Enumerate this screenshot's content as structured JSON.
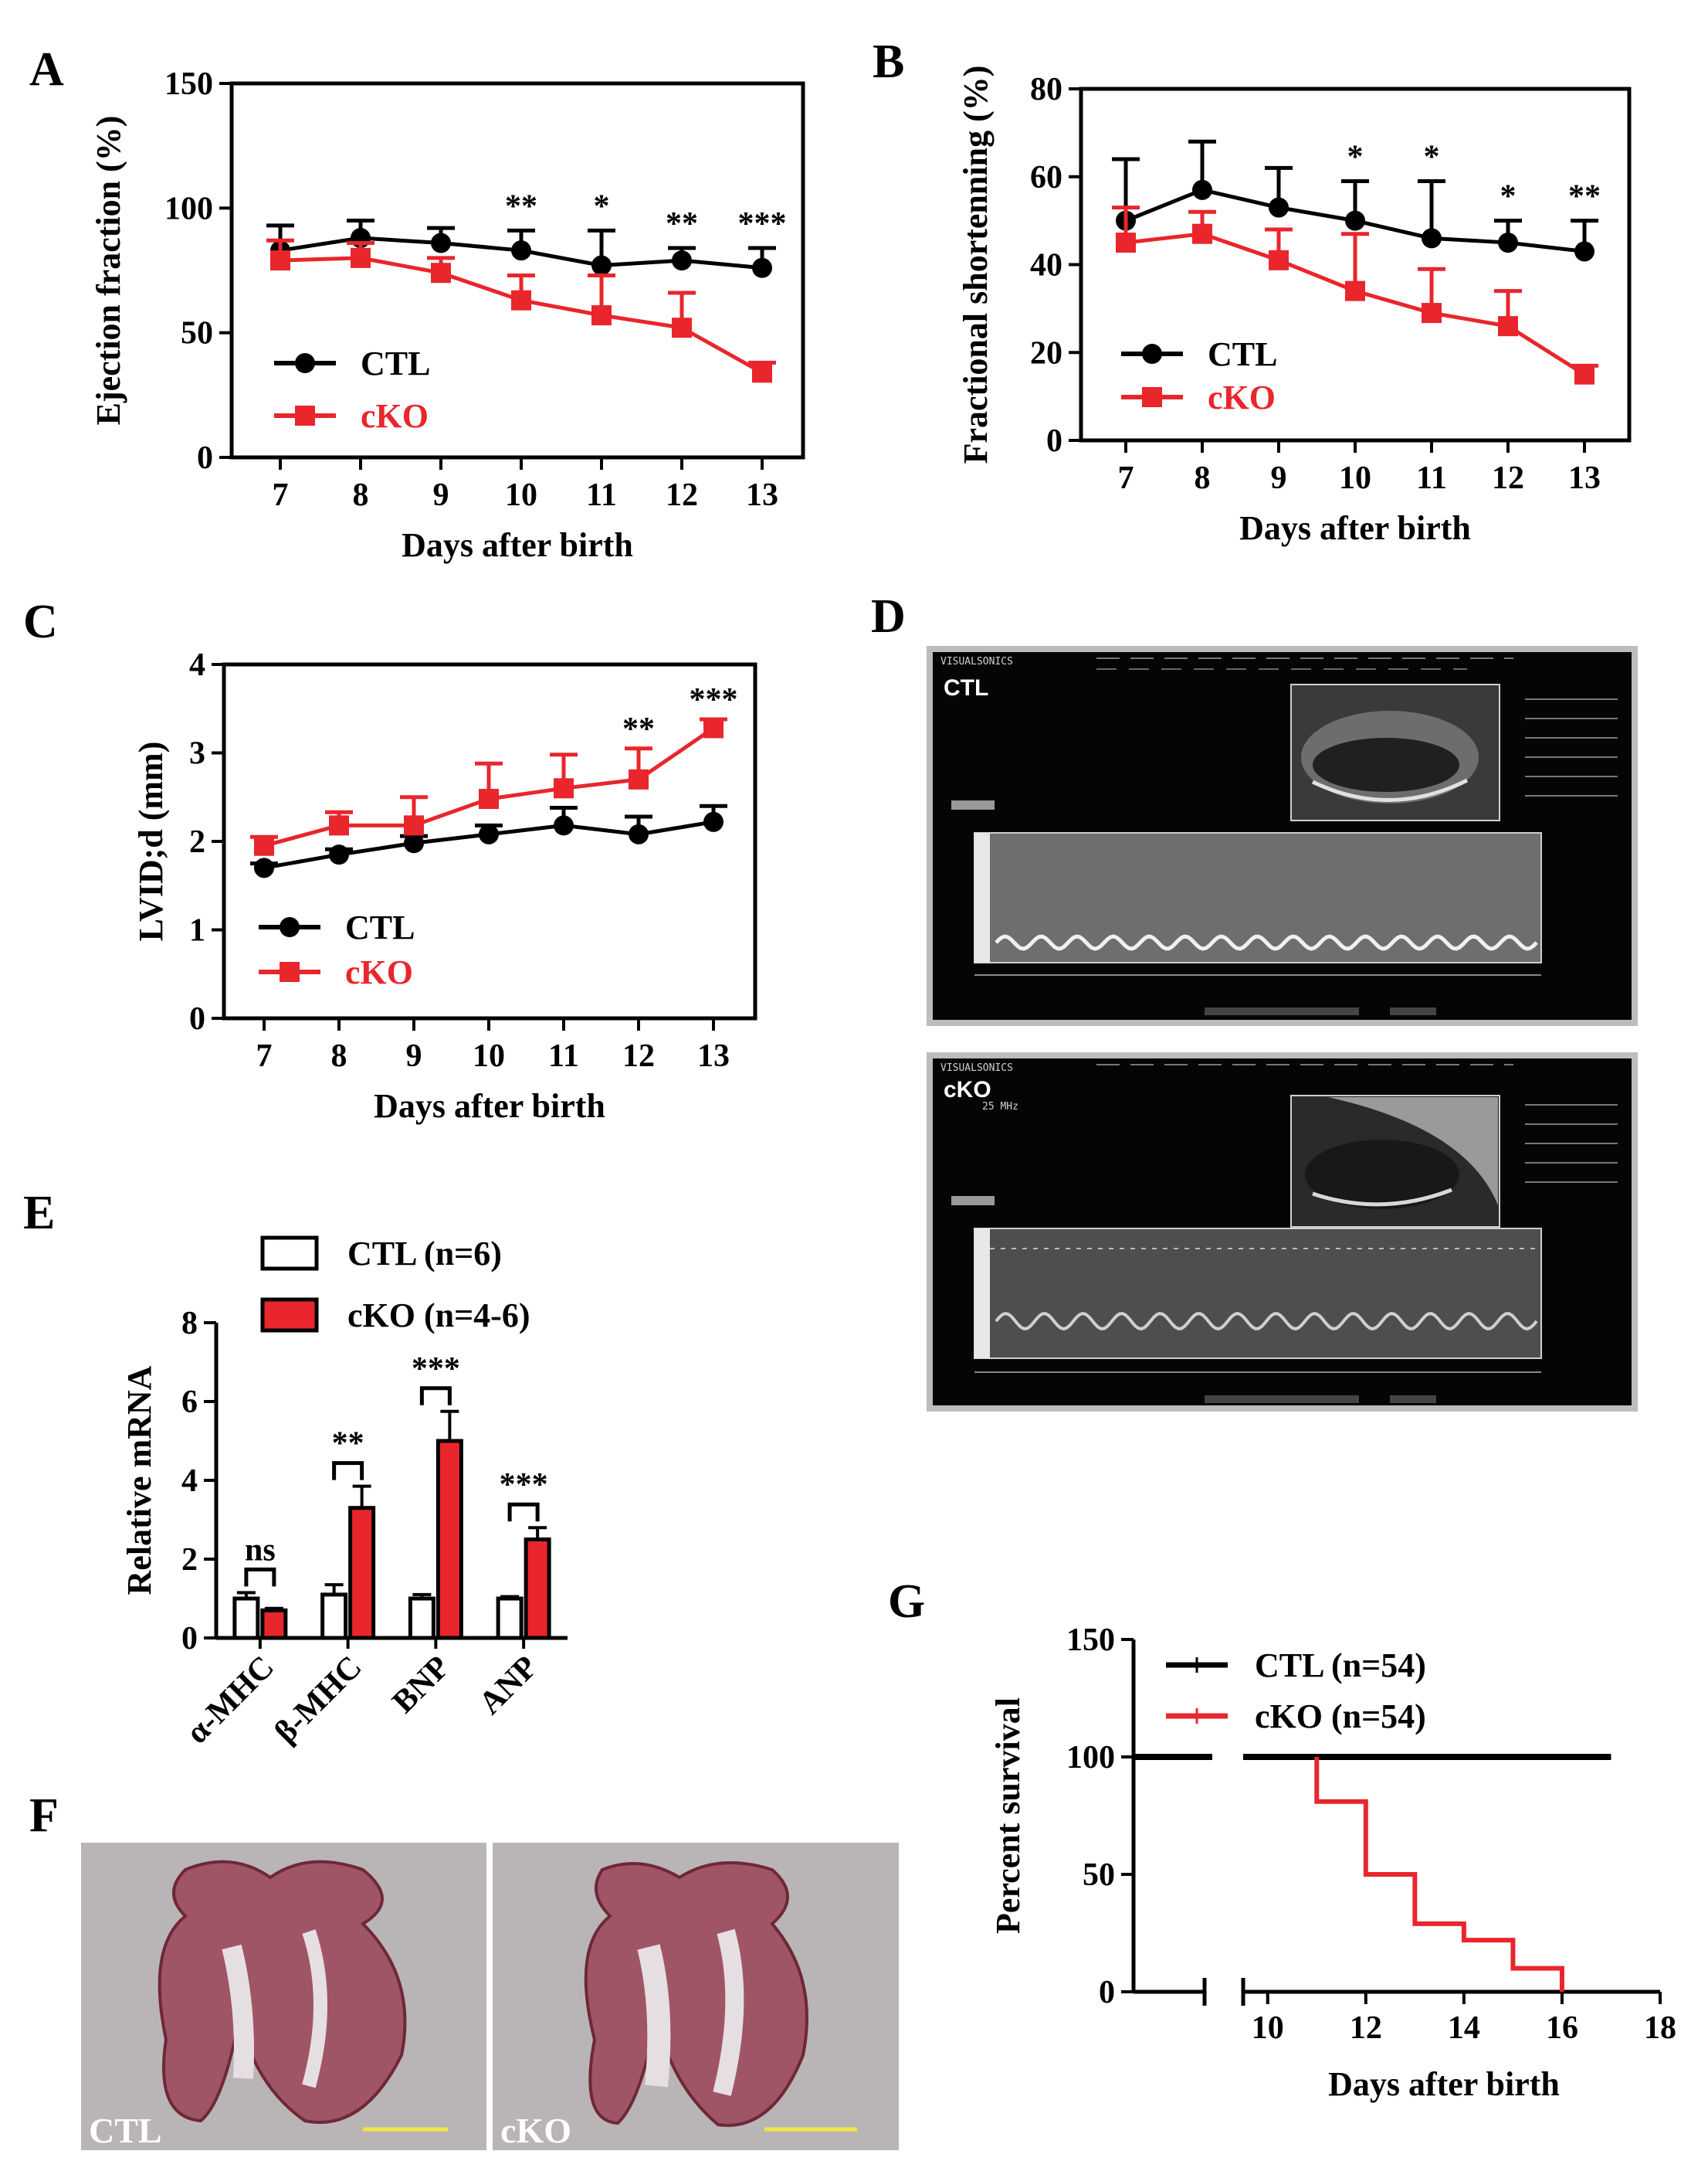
{
  "panels": {
    "A": "A",
    "B": "B",
    "C": "C",
    "D": "D",
    "E": "E",
    "F": "F",
    "G": "G"
  },
  "colors": {
    "ctl": "#000000",
    "cko": "#e8262c"
  },
  "chart_data": [
    {
      "id": "A",
      "type": "line",
      "title": "",
      "xlabel": "Days after birth",
      "ylabel": "Ejection fraction (%)",
      "x": [
        7,
        8,
        9,
        10,
        11,
        12,
        13
      ],
      "ylim": [
        0,
        150
      ],
      "yticks": [
        0,
        50,
        100,
        150
      ],
      "series": [
        {
          "name": "CTL",
          "values": [
            83,
            88,
            86,
            83,
            77,
            79,
            76
          ],
          "errors": [
            10,
            7,
            6,
            8,
            14,
            5,
            8
          ]
        },
        {
          "name": "cKO",
          "values": [
            79,
            80,
            74,
            63,
            57,
            52,
            34
          ],
          "errors": [
            8,
            6,
            6,
            10,
            16,
            14,
            4
          ]
        }
      ],
      "significance": [
        {
          "x": 10,
          "label": "**"
        },
        {
          "x": 11,
          "label": "*"
        },
        {
          "x": 12,
          "label": "**"
        },
        {
          "x": 13,
          "label": "***"
        }
      ],
      "legend": "bottom-left"
    },
    {
      "id": "B",
      "type": "line",
      "title": "",
      "xlabel": "Days after birth",
      "ylabel": "Fractional shortenning (%)",
      "x": [
        7,
        8,
        9,
        10,
        11,
        12,
        13
      ],
      "ylim": [
        0,
        80
      ],
      "yticks": [
        0,
        20,
        40,
        60,
        80
      ],
      "series": [
        {
          "name": "CTL",
          "values": [
            50,
            57,
            53,
            50,
            46,
            45,
            43
          ],
          "errors": [
            14,
            11,
            9,
            9,
            13,
            5,
            7
          ]
        },
        {
          "name": "cKO",
          "values": [
            45,
            47,
            41,
            34,
            29,
            26,
            15
          ],
          "errors": [
            8,
            5,
            7,
            13,
            10,
            8,
            2
          ]
        }
      ],
      "significance": [
        {
          "x": 10,
          "label": "*"
        },
        {
          "x": 11,
          "label": "*"
        },
        {
          "x": 12,
          "label": "*"
        },
        {
          "x": 13,
          "label": "**"
        }
      ],
      "legend": "bottom-left"
    },
    {
      "id": "C",
      "type": "line",
      "title": "",
      "xlabel": "Days after birth",
      "ylabel": "LVID;d (mm)",
      "x": [
        7,
        8,
        9,
        10,
        11,
        12,
        13
      ],
      "ylim": [
        0,
        4
      ],
      "yticks": [
        0,
        1,
        2,
        3,
        4
      ],
      "series": [
        {
          "name": "CTL",
          "values": [
            1.7,
            1.85,
            1.98,
            2.08,
            2.18,
            2.08,
            2.22
          ],
          "errors": [
            0.05,
            0.06,
            0.08,
            0.1,
            0.2,
            0.2,
            0.18
          ]
        },
        {
          "name": "cKO",
          "values": [
            1.95,
            2.18,
            2.18,
            2.48,
            2.6,
            2.7,
            3.28
          ],
          "errors": [
            0.1,
            0.15,
            0.32,
            0.4,
            0.38,
            0.35,
            0.1
          ]
        }
      ],
      "significance": [
        {
          "x": 12,
          "label": "**"
        },
        {
          "x": 13,
          "label": "***"
        }
      ],
      "legend": "bottom-left"
    },
    {
      "id": "E",
      "type": "bar",
      "title": "",
      "xlabel": "",
      "ylabel": "Relative mRNA",
      "categories": [
        "α-MHC",
        "β-MHC",
        "BNP",
        "ANP"
      ],
      "ylim": [
        0,
        8
      ],
      "yticks": [
        0,
        2,
        4,
        6,
        8
      ],
      "series": [
        {
          "name": "CTL (n=6)",
          "values": [
            1.0,
            1.1,
            1.0,
            1.0
          ],
          "errors": [
            0.15,
            0.25,
            0.1,
            0.05
          ]
        },
        {
          "name": "cKO (n=4-6)",
          "values": [
            0.7,
            3.3,
            5.0,
            2.5
          ],
          "errors": [
            0.05,
            0.55,
            0.75,
            0.3
          ]
        }
      ],
      "significance": [
        "ns",
        "**",
        "***",
        "***"
      ],
      "legend": "top-left"
    },
    {
      "id": "G",
      "type": "line",
      "title": "",
      "xlabel": "Days after birth",
      "ylabel": "Percent survival",
      "xlim": [
        8,
        18
      ],
      "xticks": [
        10,
        12,
        14,
        16,
        18
      ],
      "ylim": [
        0,
        150
      ],
      "yticks": [
        0,
        50,
        100,
        150
      ],
      "series": [
        {
          "name": "CTL (n=54)",
          "steps": [
            [
              8,
              100
            ],
            [
              17,
              100
            ]
          ]
        },
        {
          "name": "cKO (n=54)",
          "steps": [
            [
              11,
              100
            ],
            [
              11,
              81
            ],
            [
              12,
              81
            ],
            [
              12,
              50
            ],
            [
              13,
              50
            ],
            [
              13,
              29
            ],
            [
              14,
              29
            ],
            [
              14,
              22
            ],
            [
              15,
              22
            ],
            [
              15,
              10
            ],
            [
              16,
              10
            ],
            [
              16,
              0
            ]
          ]
        }
      ],
      "legend": "top"
    }
  ],
  "echo": [
    {
      "label": "CTL",
      "brand": "VISUALSONICS"
    },
    {
      "label": "cKO",
      "brand": "VISUALSONICS",
      "freq": "25 MHz"
    }
  ],
  "histology": [
    {
      "label": "CTL"
    },
    {
      "label": "cKO"
    }
  ]
}
